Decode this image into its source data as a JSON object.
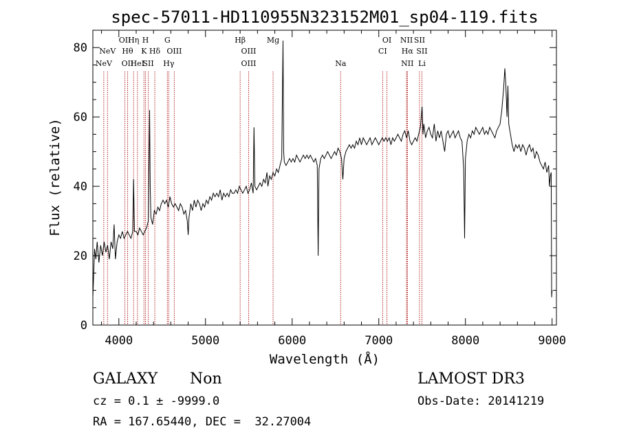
{
  "chart_data": {
    "type": "line",
    "title": "spec-57011-HD110955N323152M01_sp04-119.fits",
    "xlabel": "Wavelength (Å)",
    "ylabel": "Flux (relative)",
    "xlim": [
      3700,
      9050
    ],
    "ylim": [
      0,
      85
    ],
    "xticks": [
      4000,
      5000,
      6000,
      7000,
      8000,
      9000
    ],
    "yticks": [
      0,
      20,
      40,
      60,
      80
    ],
    "grid": false,
    "series": [
      {
        "name": "flux",
        "color": "#000000",
        "points": [
          [
            3700,
            8
          ],
          [
            3710,
            15
          ],
          [
            3720,
            22
          ],
          [
            3735,
            19
          ],
          [
            3750,
            24
          ],
          [
            3770,
            18
          ],
          [
            3790,
            23
          ],
          [
            3810,
            20
          ],
          [
            3830,
            24
          ],
          [
            3850,
            21
          ],
          [
            3870,
            23
          ],
          [
            3890,
            19
          ],
          [
            3910,
            24
          ],
          [
            3930,
            22
          ],
          [
            3945,
            29
          ],
          [
            3960,
            19
          ],
          [
            3980,
            24
          ],
          [
            4000,
            26
          ],
          [
            4020,
            25
          ],
          [
            4040,
            27
          ],
          [
            4060,
            25
          ],
          [
            4080,
            26
          ],
          [
            4100,
            27
          ],
          [
            4120,
            26
          ],
          [
            4140,
            25
          ],
          [
            4160,
            27
          ],
          [
            4170,
            42
          ],
          [
            4180,
            27
          ],
          [
            4200,
            27
          ],
          [
            4220,
            26
          ],
          [
            4240,
            28
          ],
          [
            4260,
            27
          ],
          [
            4280,
            26
          ],
          [
            4300,
            27
          ],
          [
            4320,
            28
          ],
          [
            4340,
            30
          ],
          [
            4355,
            62
          ],
          [
            4362,
            40
          ],
          [
            4370,
            31
          ],
          [
            4390,
            29
          ],
          [
            4410,
            33
          ],
          [
            4430,
            32
          ],
          [
            4450,
            34
          ],
          [
            4470,
            33
          ],
          [
            4490,
            35
          ],
          [
            4510,
            36
          ],
          [
            4530,
            35
          ],
          [
            4550,
            36
          ],
          [
            4570,
            34
          ],
          [
            4590,
            37
          ],
          [
            4610,
            35
          ],
          [
            4630,
            34
          ],
          [
            4650,
            35
          ],
          [
            4670,
            34
          ],
          [
            4690,
            33
          ],
          [
            4710,
            35
          ],
          [
            4730,
            34
          ],
          [
            4750,
            32
          ],
          [
            4770,
            33
          ],
          [
            4790,
            30
          ],
          [
            4800,
            26
          ],
          [
            4810,
            31
          ],
          [
            4830,
            35
          ],
          [
            4850,
            33
          ],
          [
            4870,
            36
          ],
          [
            4890,
            34
          ],
          [
            4910,
            36
          ],
          [
            4930,
            35
          ],
          [
            4950,
            33
          ],
          [
            4970,
            35
          ],
          [
            4990,
            34
          ],
          [
            5010,
            36
          ],
          [
            5030,
            35
          ],
          [
            5050,
            37
          ],
          [
            5070,
            36
          ],
          [
            5090,
            38
          ],
          [
            5110,
            37
          ],
          [
            5130,
            38
          ],
          [
            5150,
            37
          ],
          [
            5170,
            39
          ],
          [
            5190,
            36
          ],
          [
            5210,
            38
          ],
          [
            5230,
            37
          ],
          [
            5250,
            38
          ],
          [
            5270,
            37
          ],
          [
            5290,
            39
          ],
          [
            5310,
            38
          ],
          [
            5330,
            38
          ],
          [
            5350,
            39
          ],
          [
            5370,
            38
          ],
          [
            5390,
            40
          ],
          [
            5410,
            39
          ],
          [
            5430,
            38
          ],
          [
            5450,
            39
          ],
          [
            5470,
            40
          ],
          [
            5490,
            38
          ],
          [
            5510,
            39
          ],
          [
            5530,
            41
          ],
          [
            5550,
            38
          ],
          [
            5560,
            57
          ],
          [
            5570,
            40
          ],
          [
            5590,
            39
          ],
          [
            5610,
            40
          ],
          [
            5630,
            41
          ],
          [
            5650,
            40
          ],
          [
            5670,
            42
          ],
          [
            5690,
            41
          ],
          [
            5710,
            44
          ],
          [
            5720,
            40
          ],
          [
            5740,
            43
          ],
          [
            5760,
            42
          ],
          [
            5780,
            44
          ],
          [
            5800,
            43
          ],
          [
            5820,
            45
          ],
          [
            5840,
            44
          ],
          [
            5860,
            46
          ],
          [
            5880,
            48
          ],
          [
            5895,
            82
          ],
          [
            5902,
            50
          ],
          [
            5910,
            47
          ],
          [
            5930,
            46
          ],
          [
            5950,
            47
          ],
          [
            5970,
            48
          ],
          [
            5990,
            47
          ],
          [
            6010,
            48
          ],
          [
            6030,
            47
          ],
          [
            6050,
            49
          ],
          [
            6070,
            48
          ],
          [
            6090,
            47
          ],
          [
            6110,
            48
          ],
          [
            6130,
            49
          ],
          [
            6150,
            48
          ],
          [
            6170,
            49
          ],
          [
            6190,
            48
          ],
          [
            6210,
            49
          ],
          [
            6230,
            48
          ],
          [
            6250,
            47
          ],
          [
            6270,
            48
          ],
          [
            6290,
            46
          ],
          [
            6300,
            20
          ],
          [
            6310,
            45
          ],
          [
            6330,
            48
          ],
          [
            6350,
            49
          ],
          [
            6370,
            48
          ],
          [
            6390,
            49
          ],
          [
            6410,
            50
          ],
          [
            6430,
            49
          ],
          [
            6450,
            48
          ],
          [
            6470,
            49
          ],
          [
            6490,
            50
          ],
          [
            6510,
            49
          ],
          [
            6530,
            51
          ],
          [
            6550,
            50
          ],
          [
            6570,
            48
          ],
          [
            6585,
            42
          ],
          [
            6600,
            48
          ],
          [
            6620,
            50
          ],
          [
            6640,
            51
          ],
          [
            6660,
            52
          ],
          [
            6680,
            51
          ],
          [
            6700,
            52
          ],
          [
            6720,
            51
          ],
          [
            6740,
            53
          ],
          [
            6760,
            52
          ],
          [
            6780,
            54
          ],
          [
            6800,
            52
          ],
          [
            6820,
            54
          ],
          [
            6840,
            53
          ],
          [
            6860,
            52
          ],
          [
            6880,
            53
          ],
          [
            6900,
            54
          ],
          [
            6920,
            52
          ],
          [
            6940,
            53
          ],
          [
            6960,
            54
          ],
          [
            6980,
            53
          ],
          [
            7000,
            52
          ],
          [
            7020,
            53
          ],
          [
            7040,
            54
          ],
          [
            7060,
            53
          ],
          [
            7080,
            54
          ],
          [
            7100,
            53
          ],
          [
            7120,
            54
          ],
          [
            7140,
            52
          ],
          [
            7160,
            54
          ],
          [
            7180,
            53
          ],
          [
            7200,
            54
          ],
          [
            7220,
            55
          ],
          [
            7240,
            54
          ],
          [
            7260,
            53
          ],
          [
            7280,
            55
          ],
          [
            7300,
            56
          ],
          [
            7320,
            54
          ],
          [
            7340,
            56
          ],
          [
            7360,
            53
          ],
          [
            7380,
            52
          ],
          [
            7400,
            53
          ],
          [
            7420,
            54
          ],
          [
            7440,
            53
          ],
          [
            7460,
            55
          ],
          [
            7480,
            57
          ],
          [
            7500,
            63
          ],
          [
            7510,
            55
          ],
          [
            7520,
            58
          ],
          [
            7530,
            56
          ],
          [
            7540,
            54
          ],
          [
            7560,
            56
          ],
          [
            7580,
            57
          ],
          [
            7600,
            55
          ],
          [
            7620,
            54
          ],
          [
            7640,
            58
          ],
          [
            7660,
            53
          ],
          [
            7680,
            56
          ],
          [
            7700,
            54
          ],
          [
            7720,
            56
          ],
          [
            7740,
            53
          ],
          [
            7760,
            50
          ],
          [
            7780,
            55
          ],
          [
            7800,
            56
          ],
          [
            7820,
            54
          ],
          [
            7840,
            55
          ],
          [
            7860,
            56
          ],
          [
            7880,
            54
          ],
          [
            7900,
            55
          ],
          [
            7920,
            56
          ],
          [
            7940,
            54
          ],
          [
            7960,
            53
          ],
          [
            7980,
            45
          ],
          [
            7990,
            25
          ],
          [
            8000,
            48
          ],
          [
            8020,
            53
          ],
          [
            8040,
            55
          ],
          [
            8060,
            54
          ],
          [
            8080,
            56
          ],
          [
            8100,
            55
          ],
          [
            8120,
            57
          ],
          [
            8140,
            56
          ],
          [
            8160,
            55
          ],
          [
            8180,
            56
          ],
          [
            8200,
            57
          ],
          [
            8220,
            55
          ],
          [
            8240,
            56
          ],
          [
            8260,
            55
          ],
          [
            8280,
            57
          ],
          [
            8300,
            56
          ],
          [
            8320,
            55
          ],
          [
            8340,
            54
          ],
          [
            8360,
            56
          ],
          [
            8380,
            57
          ],
          [
            8400,
            58
          ],
          [
            8420,
            62
          ],
          [
            8440,
            68
          ],
          [
            8455,
            74
          ],
          [
            8465,
            70
          ],
          [
            8480,
            60
          ],
          [
            8490,
            69
          ],
          [
            8500,
            58
          ],
          [
            8520,
            55
          ],
          [
            8540,
            52
          ],
          [
            8560,
            50
          ],
          [
            8580,
            52
          ],
          [
            8600,
            51
          ],
          [
            8620,
            52
          ],
          [
            8640,
            50
          ],
          [
            8660,
            52
          ],
          [
            8680,
            51
          ],
          [
            8700,
            49
          ],
          [
            8720,
            51
          ],
          [
            8740,
            52
          ],
          [
            8760,
            50
          ],
          [
            8780,
            51
          ],
          [
            8800,
            48
          ],
          [
            8820,
            50
          ],
          [
            8840,
            49
          ],
          [
            8860,
            47
          ],
          [
            8880,
            46
          ],
          [
            8900,
            45
          ],
          [
            8920,
            47
          ],
          [
            8940,
            44
          ],
          [
            8960,
            46
          ],
          [
            8970,
            40
          ],
          [
            8980,
            43
          ],
          [
            8990,
            44
          ],
          [
            8995,
            8
          ],
          [
            9000,
            10
          ]
        ]
      }
    ],
    "emission_lines": [
      {
        "x": 3826,
        "row": 2,
        "label": "NeV"
      },
      {
        "x": 3869,
        "row": 1,
        "label": "NeV"
      },
      {
        "x": 4070,
        "row": 0,
        "label": "OII"
      },
      {
        "x": 4101,
        "row": 1,
        "label": "Hθ"
      },
      {
        "x": 4101,
        "row": 2,
        "label": "OII"
      },
      {
        "x": 4170,
        "row": 0,
        "label": "Hη"
      },
      {
        "x": 4215,
        "row": 2,
        "label": "HeI"
      },
      {
        "x": 4290,
        "row": 1,
        "label": "K"
      },
      {
        "x": 4308,
        "row": 0,
        "label": "H"
      },
      {
        "x": 4340,
        "row": 2,
        "label": "SII"
      },
      {
        "x": 4415,
        "row": 1,
        "label": "Hδ"
      },
      {
        "x": 4560,
        "row": 0,
        "label": "G"
      },
      {
        "x": 4576,
        "row": 2,
        "label": "Hγ"
      },
      {
        "x": 4640,
        "row": 1,
        "label": "OIII"
      },
      {
        "x": 5400,
        "row": 0,
        "label": "Hβ"
      },
      {
        "x": 5498,
        "row": 1,
        "label": "OIII"
      },
      {
        "x": 5498,
        "row": 2,
        "label": "OIII"
      },
      {
        "x": 5780,
        "row": 0,
        "label": "Mg"
      },
      {
        "x": 6560,
        "row": 2,
        "label": "Na"
      },
      {
        "x": 7045,
        "row": 1,
        "label": "CI"
      },
      {
        "x": 7094,
        "row": 0,
        "label": "OI"
      },
      {
        "x": 7320,
        "row": 0,
        "label": "NII"
      },
      {
        "x": 7330,
        "row": 1,
        "label": "Hα"
      },
      {
        "x": 7330,
        "row": 2,
        "label": "NII"
      },
      {
        "x": 7470,
        "row": 0,
        "label": "SII"
      },
      {
        "x": 7498,
        "row": 1,
        "label": "SII"
      },
      {
        "x": 7498,
        "row": 2,
        "label": "Li"
      }
    ]
  },
  "info": {
    "class_label": "GALAXY",
    "subclass_label": "Non",
    "survey_label": "LAMOST DR3",
    "cz_text": "cz = 0.1 ± -9999.0",
    "obs_date_text": "Obs-Date: 20141219",
    "coords_text": "RA = 167.65440, DEC =  32.27004"
  }
}
